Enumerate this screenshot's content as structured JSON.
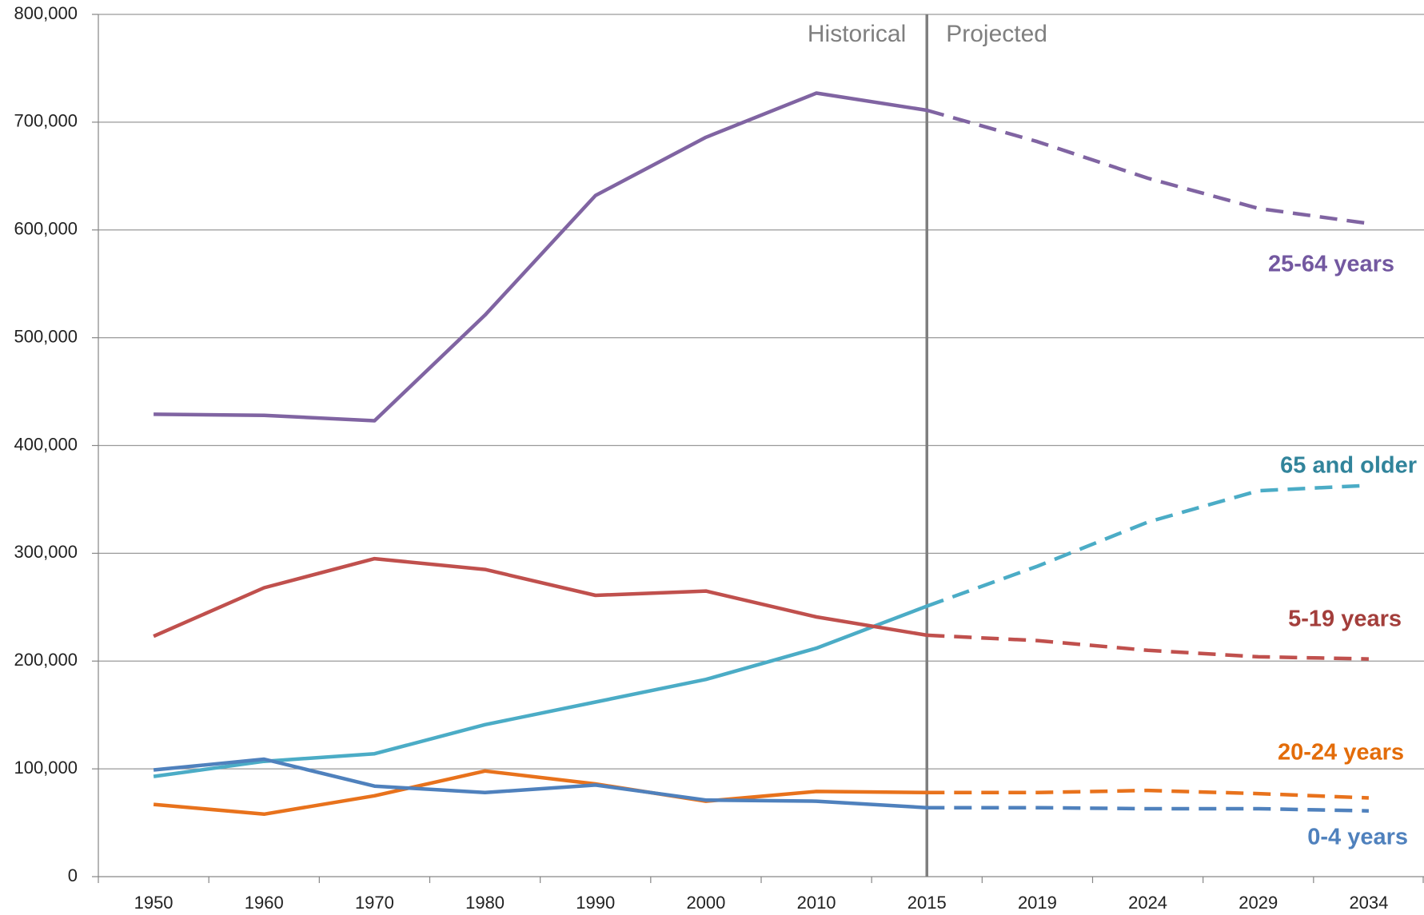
{
  "chart_data": {
    "type": "line",
    "categories": [
      "1950",
      "1960",
      "1970",
      "1980",
      "1990",
      "2000",
      "2010",
      "2015",
      "2019",
      "2024",
      "2029",
      "2034"
    ],
    "series": [
      {
        "name": "25-64 years",
        "color": "#8064a2",
        "label_color": "#7358a0",
        "values": [
          429000,
          428000,
          423000,
          521000,
          632000,
          686000,
          727000,
          711000,
          682000,
          648000,
          620000,
          606000
        ]
      },
      {
        "name": "65 and older",
        "color": "#4bacc6",
        "label_color": "#31849b",
        "values": [
          93000,
          107000,
          114000,
          141000,
          162000,
          183000,
          212000,
          251000,
          288000,
          329000,
          358000,
          363000
        ]
      },
      {
        "name": "5-19 years",
        "color": "#c0504d",
        "label_color": "#a33e3b",
        "values": [
          223000,
          268000,
          295000,
          285000,
          261000,
          265000,
          241000,
          224000,
          219000,
          210000,
          204000,
          202000
        ]
      },
      {
        "name": "20-24 years",
        "color": "#e8721c",
        "label_color": "#e36c09",
        "values": [
          67000,
          58000,
          75000,
          98000,
          86000,
          70000,
          79000,
          78000,
          78000,
          80000,
          77000,
          73000
        ]
      },
      {
        "name": "0-4 years",
        "color": "#4f81bd",
        "label_color": "#4f81bd",
        "values": [
          99000,
          109000,
          84000,
          78000,
          85000,
          71000,
          70000,
          64000,
          64000,
          63000,
          63000,
          61000
        ]
      }
    ],
    "ylim": [
      0,
      800000
    ],
    "yticks": [
      0,
      {
        "value": 100000,
        "label": "100,000"
      },
      {
        "value": 200000,
        "label": "200,000"
      },
      {
        "value": 300000,
        "label": "300,000"
      },
      {
        "value": 400000,
        "label": "400,000"
      },
      {
        "value": 500000,
        "label": "500,000"
      },
      {
        "value": 600000,
        "label": "600,000"
      },
      {
        "value": 700000,
        "label": "700,000"
      },
      {
        "value": 800000,
        "label": "800,000"
      }
    ],
    "grid": true,
    "divider_category": "2015",
    "annotations": [
      "Historical",
      "Projected"
    ]
  }
}
